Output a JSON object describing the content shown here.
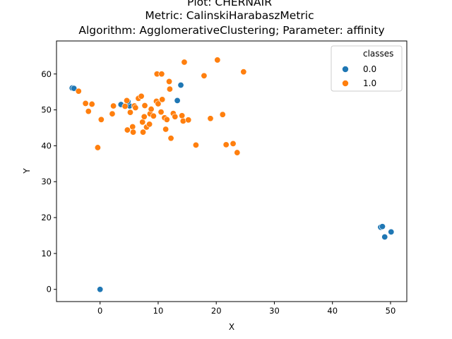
{
  "chart_data": {
    "type": "scatter",
    "title_lines": [
      "Plot: CHERNAIR",
      "Metric: CalinskiHarabaszMetric",
      "Algorithm: AgglomerativeClustering; Parameter: affinity"
    ],
    "xlabel": "X",
    "ylabel": "Y",
    "xlim": [
      -7.5,
      52.8
    ],
    "ylim": [
      -3.4,
      69.2
    ],
    "xticks": [
      0,
      10,
      20,
      30,
      40,
      50
    ],
    "yticks": [
      0,
      10,
      20,
      30,
      40,
      50,
      60
    ],
    "grid": false,
    "legend": {
      "title": "classes",
      "placement": "top-right",
      "entries": [
        {
          "label": "0.0",
          "color": "#1f77b4"
        },
        {
          "label": "1.0",
          "color": "#ff7f0e"
        }
      ]
    },
    "series": [
      {
        "name": "0.0",
        "color": "#1f77b4",
        "points": [
          [
            -4.8,
            56.1
          ],
          [
            -4.5,
            56.0
          ],
          [
            13.9,
            56.9
          ],
          [
            13.3,
            52.6
          ],
          [
            3.6,
            51.5
          ],
          [
            5.1,
            51.1
          ],
          [
            4.8,
            52.3
          ],
          [
            48.3,
            17.3
          ],
          [
            48.6,
            17.5
          ],
          [
            49.0,
            14.6
          ],
          [
            50.1,
            16.0
          ],
          [
            0.0,
            0.0
          ]
        ]
      },
      {
        "name": "1.0",
        "color": "#ff7f0e",
        "points": [
          [
            -3.7,
            55.2
          ],
          [
            -2.5,
            51.8
          ],
          [
            -2.0,
            49.6
          ],
          [
            -1.4,
            51.6
          ],
          [
            -0.4,
            39.5
          ],
          [
            0.2,
            47.3
          ],
          [
            2.1,
            48.9
          ],
          [
            2.3,
            51.1
          ],
          [
            4.3,
            51.0
          ],
          [
            4.6,
            52.6
          ],
          [
            4.7,
            44.4
          ],
          [
            5.2,
            49.3
          ],
          [
            5.6,
            45.3
          ],
          [
            5.7,
            43.8
          ],
          [
            5.9,
            51.1
          ],
          [
            6.1,
            50.6
          ],
          [
            6.6,
            53.2
          ],
          [
            7.1,
            53.8
          ],
          [
            7.3,
            46.6
          ],
          [
            7.4,
            43.8
          ],
          [
            7.6,
            48.1
          ],
          [
            7.7,
            51.2
          ],
          [
            8.0,
            45.2
          ],
          [
            8.5,
            46.0
          ],
          [
            8.6,
            48.9
          ],
          [
            8.8,
            50.2
          ],
          [
            9.2,
            48.3
          ],
          [
            9.7,
            52.4
          ],
          [
            9.8,
            60.0
          ],
          [
            10.0,
            51.7
          ],
          [
            10.5,
            49.4
          ],
          [
            10.6,
            60.0
          ],
          [
            10.7,
            52.9
          ],
          [
            11.1,
            47.8
          ],
          [
            11.3,
            44.6
          ],
          [
            11.5,
            47.3
          ],
          [
            11.9,
            57.9
          ],
          [
            12.0,
            55.8
          ],
          [
            12.2,
            42.1
          ],
          [
            12.6,
            49.0
          ],
          [
            12.9,
            48.1
          ],
          [
            14.1,
            48.4
          ],
          [
            14.3,
            46.9
          ],
          [
            14.5,
            63.3
          ],
          [
            15.2,
            47.2
          ],
          [
            16.5,
            40.2
          ],
          [
            17.9,
            59.5
          ],
          [
            19.0,
            47.6
          ],
          [
            20.2,
            63.9
          ],
          [
            21.1,
            48.7
          ],
          [
            21.7,
            40.3
          ],
          [
            22.9,
            40.6
          ],
          [
            23.6,
            38.1
          ],
          [
            24.7,
            60.6
          ]
        ]
      }
    ]
  }
}
